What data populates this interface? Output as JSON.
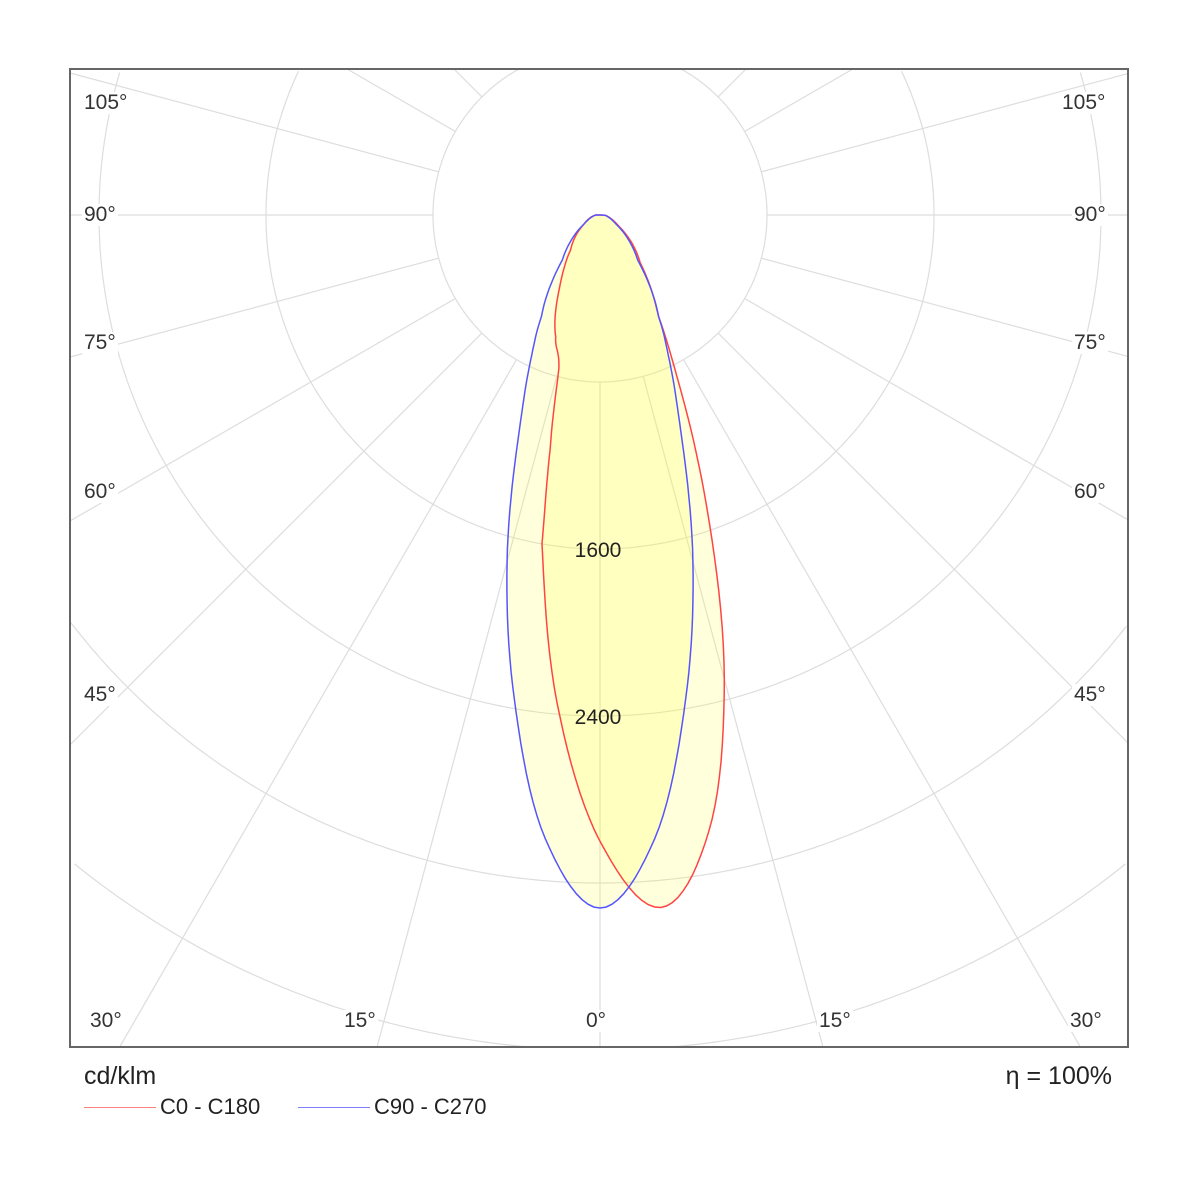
{
  "chart_data": {
    "type": "polar",
    "unit_label": "cd/klm",
    "efficiency_label": "η = 100%",
    "ring_values": [
      800,
      1600,
      2400,
      3200,
      4000
    ],
    "ring_labels": [
      "1600",
      "2400"
    ],
    "angle_labels_left": [
      "105°",
      "90°",
      "75°",
      "60°",
      "45°",
      "30°",
      "15°"
    ],
    "angle_labels_bottom": [
      "0°"
    ],
    "angle_labels_right": [
      "15°",
      "30°",
      "45°",
      "60°",
      "75°",
      "90°",
      "105°"
    ],
    "grid": true,
    "legend_placement": "bottom-left",
    "series": [
      {
        "name": "C0 - C180",
        "color": "#ff4444",
        "angles": [
          -90,
          -60,
          -40,
          -30,
          -20,
          -15,
          -12,
          -10,
          -5,
          0,
          5,
          10,
          15,
          20,
          25,
          30,
          40,
          60,
          90
        ],
        "values": [
          20,
          90,
          220,
          380,
          620,
          760,
          1150,
          1600,
          2350,
          3000,
          3330,
          3000,
          2300,
          1500,
          900,
          560,
          300,
          100,
          20
        ]
      },
      {
        "name": "C90 - C270",
        "color": "#5555ff",
        "angles": [
          -90,
          -60,
          -40,
          -30,
          -25,
          -20,
          -15,
          -10,
          -5,
          0,
          5,
          10,
          15,
          20,
          25,
          30,
          40,
          60,
          90
        ],
        "values": [
          20,
          90,
          280,
          560,
          800,
          1150,
          1720,
          2360,
          3000,
          3320,
          3000,
          2360,
          1720,
          1150,
          800,
          560,
          280,
          90,
          20
        ]
      }
    ]
  }
}
